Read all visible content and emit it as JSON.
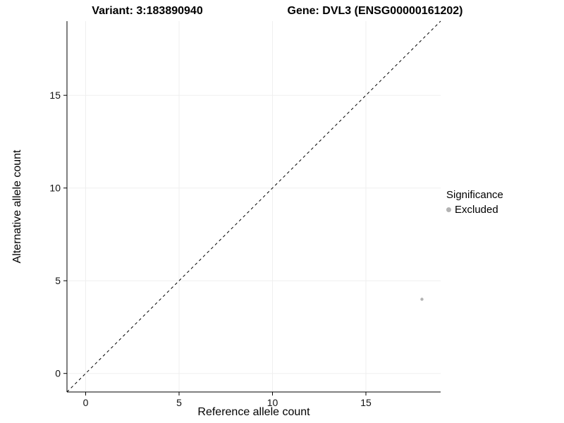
{
  "chart_data": {
    "type": "scatter",
    "titles": {
      "left": "Variant: 3:183890940",
      "right": "Gene: DVL3 (ENSG00000161202)"
    },
    "xlabel": "Reference allele count",
    "ylabel": "Alternative allele count",
    "xlim": [
      -1,
      19
    ],
    "ylim": [
      -1,
      19
    ],
    "xticks": [
      0,
      5,
      10,
      15
    ],
    "yticks": [
      0,
      5,
      10,
      15
    ],
    "grid": true,
    "points": [
      {
        "x": 18,
        "y": 4,
        "series": "Excluded"
      }
    ],
    "reference_line": {
      "style": "dashed",
      "equation": "y = x",
      "from": [
        -1,
        -1
      ],
      "to": [
        19,
        19
      ]
    },
    "legend": {
      "position": "right",
      "title": "Significance",
      "entries": [
        {
          "label": "Excluded",
          "color": "#b3b3b3"
        }
      ]
    },
    "colors": {
      "point": "#b3b3b3",
      "grid": "#efefef",
      "axis": "#000000",
      "reference_line": "#000000"
    }
  }
}
